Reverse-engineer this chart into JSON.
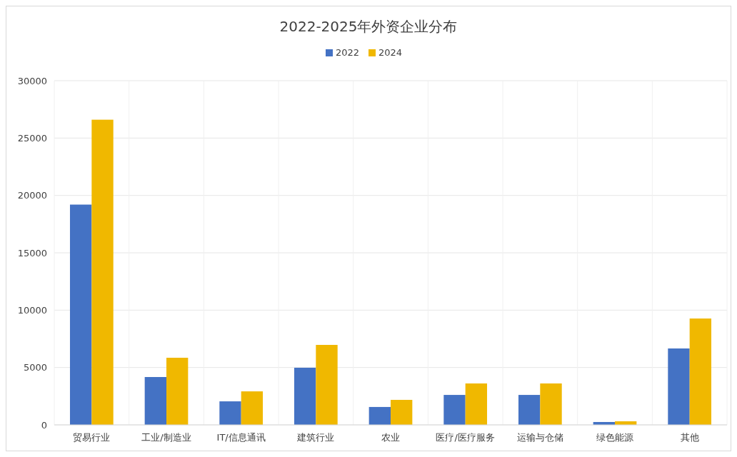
{
  "chart_data": {
    "type": "bar",
    "title": "2022-2025年外资企业分布",
    "categories": [
      "贸易行业",
      "工业/制造业",
      "IT/信息通讯",
      "建筑行业",
      "农业",
      "医疗/医疗服务",
      "运输与仓储",
      "绿色能源",
      "其他"
    ],
    "series": [
      {
        "name": "2022",
        "color": "#4472c4",
        "values": [
          19200,
          4170,
          2050,
          4980,
          1560,
          2610,
          2610,
          250,
          6660
        ]
      },
      {
        "name": "2024",
        "color": "#f0b800",
        "values": [
          26600,
          5850,
          2920,
          6970,
          2180,
          3610,
          3610,
          310,
          9270
        ]
      }
    ],
    "ylim": [
      0,
      30000
    ],
    "yticks": [
      0,
      5000,
      10000,
      15000,
      20000,
      25000,
      30000
    ],
    "grid": true,
    "legend": "top"
  }
}
